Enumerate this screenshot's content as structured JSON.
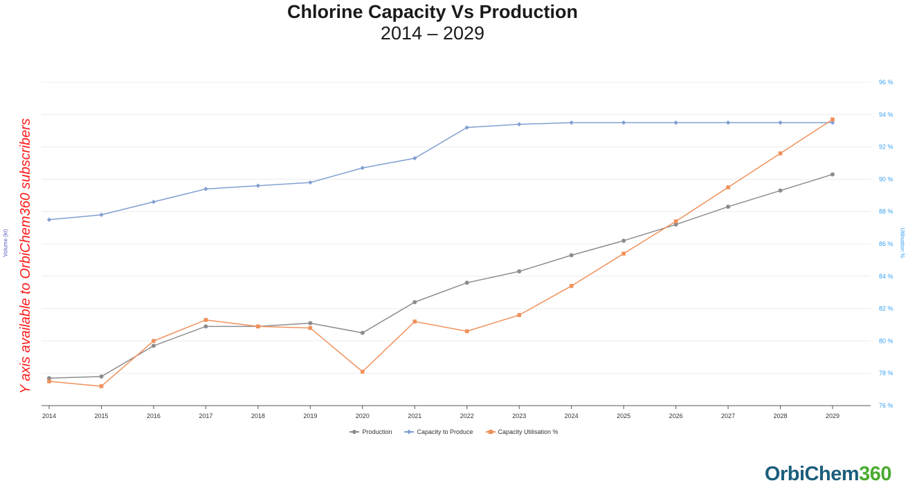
{
  "chart_data": {
    "type": "line",
    "title": "Chlorine Capacity Vs Production",
    "subtitle": "2014 – 2029",
    "ylabel_left": "Volume (kt)",
    "ylabel_right": "Utilisation %",
    "x": [
      "2014",
      "2015",
      "2016",
      "2017",
      "2018",
      "2019",
      "2020",
      "2021",
      "2022",
      "2023",
      "2024",
      "2025",
      "2026",
      "2027",
      "2028",
      "2029"
    ],
    "right_axis": {
      "min": 76,
      "max": 96,
      "step": 2,
      "unit": "%",
      "tick_labels": [
        "76 %",
        "78 %",
        "80 %",
        "82 %",
        "84 %",
        "86 %",
        "88 %",
        "90 %",
        "92 %",
        "94 %",
        "96 %"
      ]
    },
    "left_axis_note": "Y axis available to OrbiChem360 subscribers",
    "grid": true,
    "legend_position": "bottom",
    "series": [
      {
        "name": "Production",
        "axis": "left",
        "marker": "circle",
        "color": "#8c8c8c",
        "values": [
          77.7,
          77.8,
          79.7,
          80.9,
          80.9,
          81.1,
          80.5,
          82.4,
          83.6,
          84.3,
          85.3,
          86.2,
          87.2,
          88.3,
          89.3,
          90.3
        ]
      },
      {
        "name": "Capacity to Produce",
        "axis": "left",
        "marker": "diamond",
        "color": "#7f9fd0",
        "values": [
          87.5,
          87.8,
          88.6,
          89.4,
          89.6,
          89.8,
          90.7,
          91.3,
          93.2,
          93.4,
          93.5,
          93.5,
          93.5,
          93.5,
          93.5,
          93.5
        ]
      },
      {
        "name": "Capacity Utilisation %",
        "axis": "right",
        "marker": "square",
        "color": "#f0905a",
        "values": [
          77.5,
          77.2,
          80.0,
          81.3,
          80.9,
          80.8,
          78.1,
          81.2,
          80.6,
          81.6,
          83.4,
          85.4,
          87.4,
          89.5,
          91.6,
          93.7
        ]
      }
    ]
  },
  "watermark": "Y axis available to OrbiChem360 subscribers",
  "logo": {
    "part1": "OrbiChem",
    "part2": "360",
    "color1": "#1b5e7b",
    "color2": "#4aaa2f"
  }
}
